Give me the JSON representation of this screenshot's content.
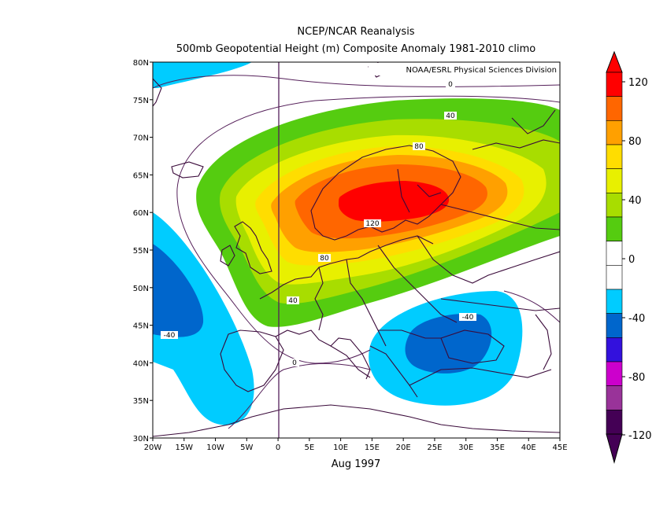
{
  "title_line1": "NCEP/NCAR Reanalysis",
  "title_line2": "500mb Geopotential Height (m) Composite Anomaly 1981-2010 climo",
  "credit": "NOAA/ESRL Physical Sciences Division",
  "period": "Aug 1997",
  "lat_ticks": [
    "80N",
    "75N",
    "70N",
    "65N",
    "60N",
    "55N",
    "50N",
    "45N",
    "40N",
    "35N",
    "30N"
  ],
  "lon_ticks": [
    "20W",
    "15W",
    "10W",
    "5W",
    "0",
    "5E",
    "10E",
    "15E",
    "20E",
    "25E",
    "30E",
    "35E",
    "40E",
    "45E"
  ],
  "contour_labels": [
    "0",
    "40",
    "80",
    "120",
    "80",
    "40",
    "-40",
    "-40",
    "0"
  ],
  "colorbar": {
    "labels": [
      "120",
      "80",
      "40",
      "0",
      "-40",
      "-80",
      "-120"
    ],
    "colors": [
      "#ff0000",
      "#ff6600",
      "#ffa000",
      "#ffdd00",
      "#e8f000",
      "#a8dd00",
      "#55cc10",
      "#ffffff",
      "#ffffff",
      "#00ccff",
      "#0066cc",
      "#3311dd",
      "#cc00cc",
      "#993399",
      "#440055"
    ]
  },
  "colors": {
    "c40": "#55cc10",
    "c50": "#a8dd00",
    "c60": "#e8f000",
    "c70": "#ffdd00",
    "c80": "#ffa000",
    "c100": "#ff6600",
    "c120": "#ff0000",
    "n20": "#00ccff",
    "n40": "#0066cc"
  }
}
